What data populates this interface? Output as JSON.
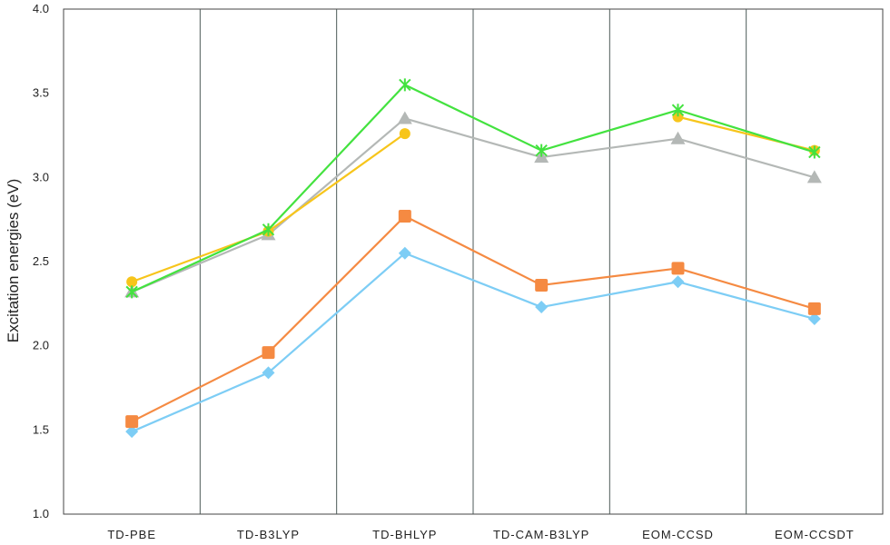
{
  "chart_data": {
    "type": "line",
    "categories": [
      "TD-PBE",
      "TD-B3LYP",
      "TD-BHLYP",
      "TD-CAM-B3LYP",
      "EOM-CCSD",
      "EOM-CCSDT"
    ],
    "ylabel": "Excitation energies (eV)",
    "ylim": [
      1.0,
      4.0
    ],
    "yticks": [
      "1.0",
      "1.5",
      "2.0",
      "2.5",
      "3.0",
      "3.5",
      "4.0"
    ],
    "grid": "vertical category separators",
    "series": [
      {
        "marker": "diamond",
        "color": "#7dcdf5",
        "values": [
          1.49,
          1.84,
          2.55,
          2.23,
          2.38,
          2.16
        ]
      },
      {
        "marker": "square",
        "color": "#f58a42",
        "values": [
          1.55,
          1.96,
          2.77,
          2.36,
          2.46,
          2.22
        ]
      },
      {
        "marker": "triangle",
        "color": "#b4b8b6",
        "values": [
          2.32,
          2.66,
          3.35,
          3.12,
          3.23,
          3.0
        ]
      },
      {
        "marker": "circle",
        "color": "#f7c51b",
        "values": [
          2.38,
          2.68,
          3.26,
          null,
          3.36,
          3.16
        ]
      },
      {
        "marker": "x",
        "color": "#43e23f",
        "values": [
          2.32,
          2.69,
          3.55,
          3.16,
          3.4,
          3.15
        ]
      }
    ]
  }
}
